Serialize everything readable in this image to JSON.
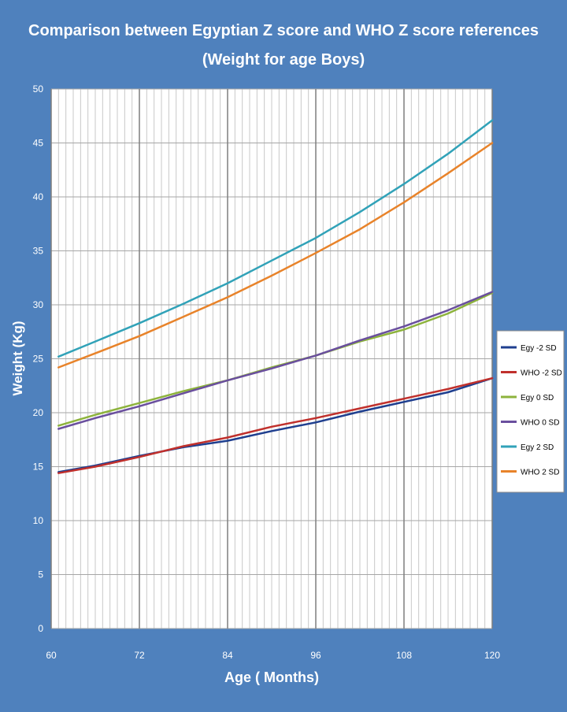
{
  "chart_data": {
    "type": "line",
    "title": "Comparison between Egyptian Z score and WHO Z score references",
    "subtitle": "(Weight for age Boys)",
    "xlabel": "Age ( Months)",
    "ylabel": "Weight (Kg)",
    "xlim": [
      60,
      120
    ],
    "ylim": [
      0,
      50
    ],
    "x_ticks": [
      60,
      72,
      84,
      96,
      108,
      120
    ],
    "y_ticks": [
      0,
      5,
      10,
      15,
      20,
      25,
      30,
      35,
      40,
      45,
      50
    ],
    "grid": true,
    "legend_position": "right",
    "x": [
      61,
      66,
      72,
      78,
      84,
      90,
      96,
      102,
      108,
      114,
      120
    ],
    "series": [
      {
        "name": "Egy -2 SD",
        "color": "#1f3f8f",
        "values": [
          14.5,
          15.1,
          16.0,
          16.8,
          17.4,
          18.3,
          19.1,
          20.1,
          21.0,
          21.9,
          23.2
        ]
      },
      {
        "name": "WHO -2 SD",
        "color": "#c0302c",
        "values": [
          14.4,
          15.0,
          15.9,
          16.9,
          17.7,
          18.7,
          19.5,
          20.4,
          21.3,
          22.2,
          23.2
        ]
      },
      {
        "name": "Egy 0 SD",
        "color": "#8db33c",
        "values": [
          18.8,
          19.8,
          20.9,
          22.0,
          23.0,
          24.2,
          25.3,
          26.6,
          27.7,
          29.2,
          31.1
        ]
      },
      {
        "name": "WHO 0 SD",
        "color": "#6a4f9e",
        "values": [
          18.5,
          19.5,
          20.6,
          21.8,
          23.0,
          24.1,
          25.3,
          26.7,
          28.0,
          29.5,
          31.2
        ]
      },
      {
        "name": "Egy 2 SD",
        "color": "#31a2b8",
        "values": [
          25.2,
          26.6,
          28.3,
          30.1,
          32.0,
          34.1,
          36.2,
          38.6,
          41.2,
          44.0,
          47.1
        ]
      },
      {
        "name": "WHO 2 SD",
        "color": "#e8832a",
        "values": [
          24.2,
          25.5,
          27.1,
          28.9,
          30.7,
          32.7,
          34.8,
          37.0,
          39.5,
          42.2,
          45.0
        ]
      }
    ]
  }
}
